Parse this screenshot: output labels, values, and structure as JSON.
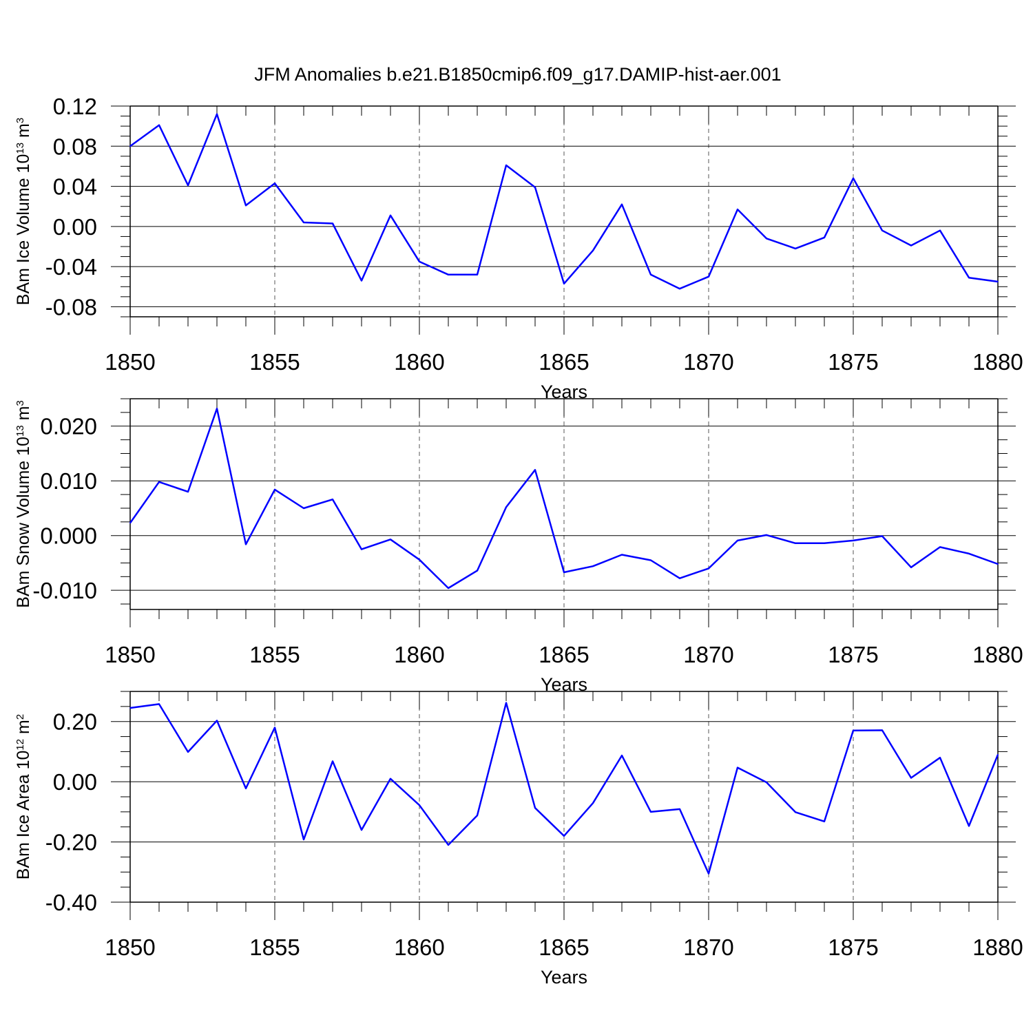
{
  "title": "JFM Anomalies b.e21.B1850cmip6.f09_g17.DAMIP-hist-aer.001",
  "chart_data": [
    {
      "type": "line",
      "title": "",
      "xlabel": "Years",
      "ylabel": "BAm Ice Volume 10",
      "ylabel_exp": "13",
      "ylabel_unit": " m",
      "ylabel_unit_exp": "3",
      "xlim": [
        1850,
        1880
      ],
      "ylim": [
        -0.09,
        0.12
      ],
      "x_ticks": [
        "1850",
        "1855",
        "1860",
        "1865",
        "1870",
        "1875",
        "1880"
      ],
      "y_ticks": [
        "-0.08",
        "-0.04",
        "0.00",
        "0.04",
        "0.08",
        "0.12"
      ],
      "grid": "dashed vertical at major x ticks",
      "color": "#0000ff",
      "x": [
        1850,
        1851,
        1852,
        1853,
        1854,
        1855,
        1856,
        1857,
        1858,
        1859,
        1860,
        1861,
        1862,
        1863,
        1864,
        1865,
        1866,
        1867,
        1868,
        1869,
        1870,
        1871,
        1872,
        1873,
        1874,
        1875,
        1876,
        1877,
        1878,
        1879,
        1880
      ],
      "values": [
        0.08,
        0.101,
        0.041,
        0.112,
        0.021,
        0.043,
        0.004,
        0.003,
        -0.054,
        0.011,
        -0.035,
        -0.048,
        -0.048,
        0.061,
        0.039,
        -0.057,
        -0.024,
        0.022,
        -0.048,
        -0.062,
        -0.05,
        0.017,
        -0.012,
        -0.022,
        -0.011,
        0.048,
        -0.004,
        -0.019,
        -0.004,
        -0.051,
        -0.055
      ]
    },
    {
      "type": "line",
      "title": "",
      "xlabel": "Years",
      "ylabel": "BAm Snow Volume 10",
      "ylabel_exp": "13",
      "ylabel_unit": " m",
      "ylabel_unit_exp": "3",
      "xlim": [
        1850,
        1880
      ],
      "ylim": [
        -0.0135,
        0.025
      ],
      "x_ticks": [
        "1850",
        "1855",
        "1860",
        "1865",
        "1870",
        "1875",
        "1880"
      ],
      "y_ticks": [
        "-0.010",
        "0.000",
        "0.010",
        "0.020"
      ],
      "grid": "dashed vertical at major x ticks",
      "color": "#0000ff",
      "x": [
        1850,
        1851,
        1852,
        1853,
        1854,
        1855,
        1856,
        1857,
        1858,
        1859,
        1860,
        1861,
        1862,
        1863,
        1864,
        1865,
        1866,
        1867,
        1868,
        1869,
        1870,
        1871,
        1872,
        1873,
        1874,
        1875,
        1876,
        1877,
        1878,
        1879,
        1880
      ],
      "values": [
        0.0023,
        0.0098,
        0.008,
        0.0232,
        -0.0016,
        0.0084,
        0.005,
        0.0066,
        -0.0025,
        -0.0007,
        -0.0044,
        -0.0096,
        -0.0064,
        0.0052,
        0.012,
        -0.0067,
        -0.0056,
        -0.0035,
        -0.0045,
        -0.0078,
        -0.006,
        -0.0009,
        0.0001,
        -0.0014,
        -0.0014,
        -0.0009,
        -0.0001,
        -0.0058,
        -0.0021,
        -0.0033,
        -0.0052
      ]
    },
    {
      "type": "line",
      "title": "",
      "xlabel": "Years",
      "ylabel": "BAm Ice Area 10",
      "ylabel_exp": "12",
      "ylabel_unit": " m",
      "ylabel_unit_exp": "2",
      "xlim": [
        1850,
        1880
      ],
      "ylim": [
        -0.4,
        0.3
      ],
      "x_ticks": [
        "1850",
        "1855",
        "1860",
        "1865",
        "1870",
        "1875",
        "1880"
      ],
      "y_ticks": [
        "-0.40",
        "-0.20",
        "0.00",
        "0.20"
      ],
      "grid": "dashed vertical at major x ticks",
      "color": "#0000ff",
      "x": [
        1850,
        1851,
        1852,
        1853,
        1854,
        1855,
        1856,
        1857,
        1858,
        1859,
        1860,
        1861,
        1862,
        1863,
        1864,
        1865,
        1866,
        1867,
        1868,
        1869,
        1870,
        1871,
        1872,
        1873,
        1874,
        1875,
        1876,
        1877,
        1878,
        1879,
        1880
      ],
      "values": [
        0.245,
        0.258,
        0.099,
        0.203,
        -0.022,
        0.18,
        -0.192,
        0.068,
        -0.16,
        0.01,
        -0.078,
        -0.21,
        -0.112,
        0.262,
        -0.087,
        -0.18,
        -0.071,
        0.087,
        -0.1,
        -0.091,
        -0.305,
        0.047,
        -0.002,
        -0.101,
        -0.132,
        0.17,
        0.171,
        0.013,
        0.08,
        -0.147,
        0.09
      ]
    }
  ]
}
